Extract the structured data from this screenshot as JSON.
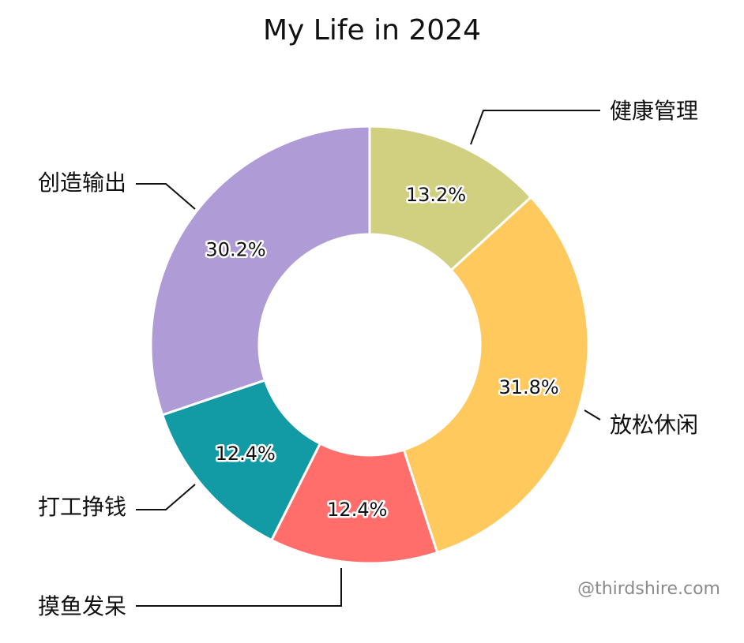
{
  "chart_data": {
    "type": "pie",
    "title": "My Life in 2024",
    "donut": true,
    "categories": [
      "健康管理",
      "放松休闲",
      "摸鱼发呆",
      "打工挣钱",
      "创造输出"
    ],
    "values": [
      13.2,
      31.8,
      12.4,
      12.4,
      30.2
    ],
    "value_labels": [
      "13.2%",
      "31.8%",
      "12.4%",
      "12.4%",
      "30.2%"
    ],
    "colors": [
      "#D0D080",
      "#FFC95E",
      "#FF6E6B",
      "#129BA5",
      "#AF9BD6"
    ],
    "start_angle_deg": 0,
    "direction": "clockwise",
    "legend": "labels beside slices with leader lines"
  },
  "watermark": "@thirdshire.com"
}
